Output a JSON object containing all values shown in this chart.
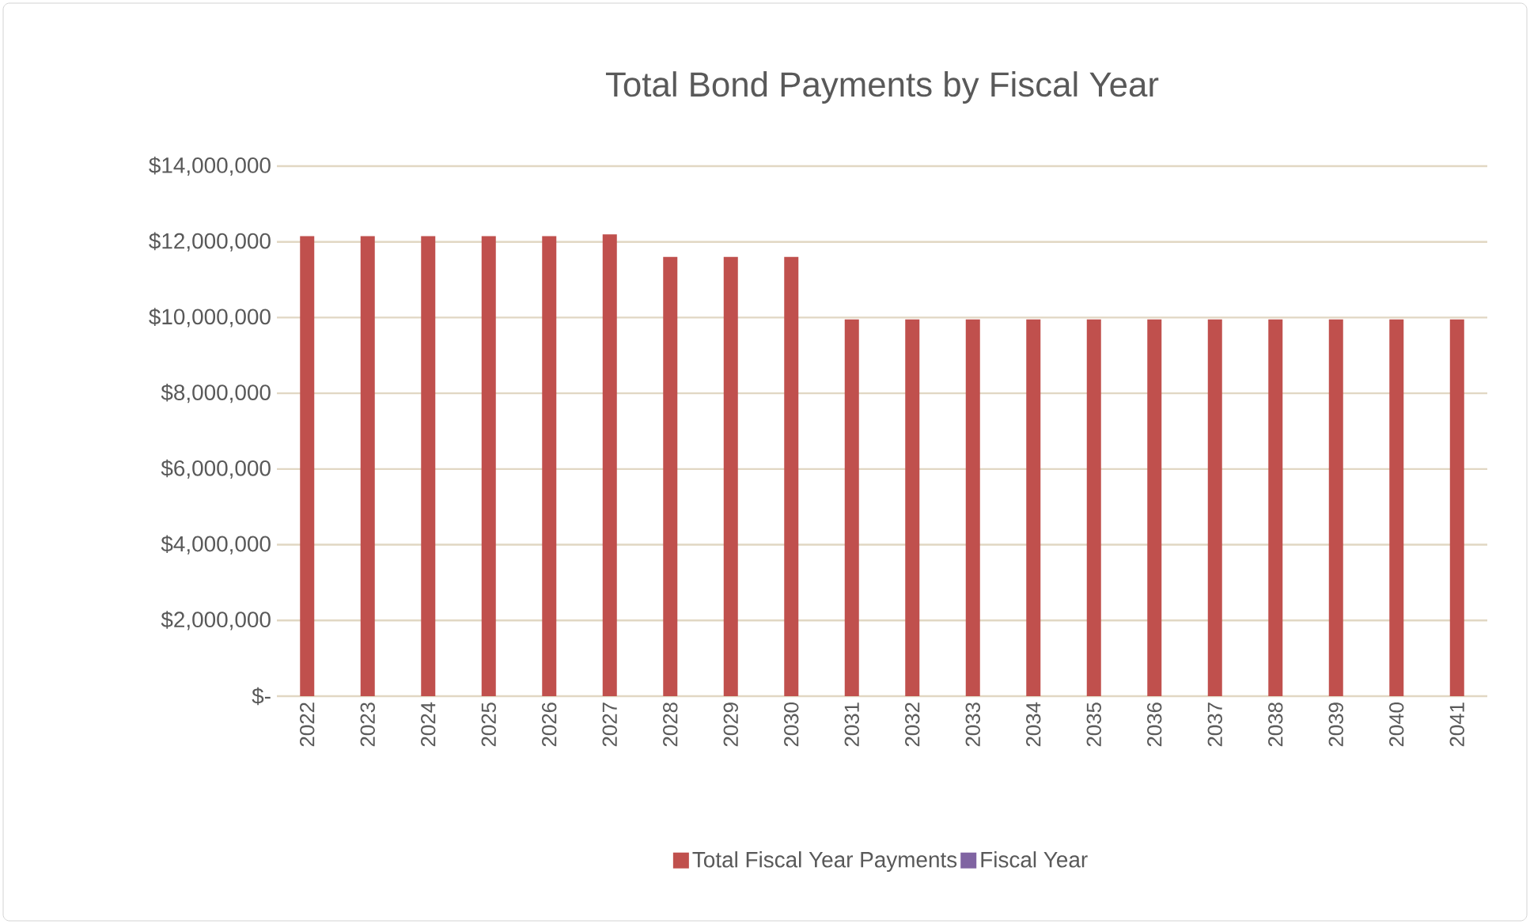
{
  "chart_data": {
    "type": "bar",
    "title": "Total Bond Payments by Fiscal Year",
    "categories": [
      "2022",
      "2023",
      "2024",
      "2025",
      "2026",
      "2027",
      "2028",
      "2029",
      "2030",
      "2031",
      "2032",
      "2033",
      "2034",
      "2035",
      "2036",
      "2037",
      "2038",
      "2039",
      "2040",
      "2041"
    ],
    "series": [
      {
        "name": "Total Fiscal Year Payments",
        "color": "#c0504d",
        "values": [
          12150000,
          12150000,
          12150000,
          12150000,
          12150000,
          12200000,
          11600000,
          11600000,
          11600000,
          9950000,
          9950000,
          9950000,
          9950000,
          9950000,
          9950000,
          9950000,
          9950000,
          9950000,
          9950000,
          9950000
        ]
      },
      {
        "name": "Fiscal Year",
        "color": "#8064a2",
        "values": [
          null,
          null,
          null,
          null,
          null,
          null,
          null,
          null,
          null,
          null,
          null,
          null,
          null,
          null,
          null,
          null,
          null,
          null,
          null,
          null
        ]
      }
    ],
    "ylim": [
      0,
      14000000
    ],
    "yticks": [
      {
        "value": 0,
        "label": "$-"
      },
      {
        "value": 2000000,
        "label": "$2,000,000"
      },
      {
        "value": 4000000,
        "label": "$4,000,000"
      },
      {
        "value": 6000000,
        "label": "$6,000,000"
      },
      {
        "value": 8000000,
        "label": "$8,000,000"
      },
      {
        "value": 10000000,
        "label": "$10,000,000"
      },
      {
        "value": 12000000,
        "label": "$12,000,000"
      },
      {
        "value": 14000000,
        "label": "$14,000,000"
      }
    ],
    "grid": "y",
    "legend": "bottom"
  }
}
